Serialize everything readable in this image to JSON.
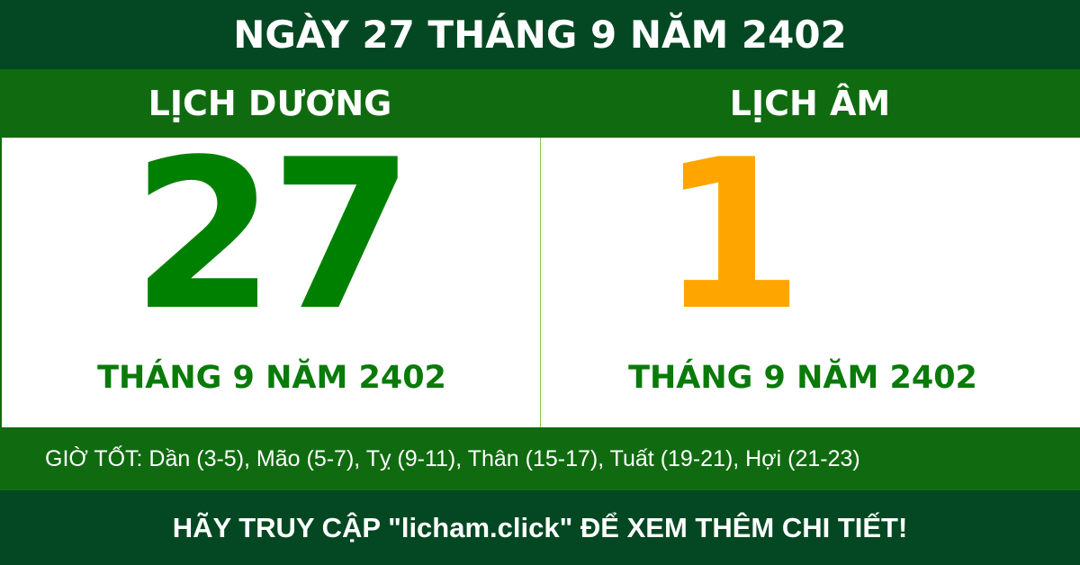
{
  "title": "NGÀY 27 THÁNG 9 NĂM 2402",
  "solar": {
    "heading": "LỊCH DƯƠNG",
    "day": "27",
    "month_year": "THÁNG 9 NĂM 2402"
  },
  "lunar": {
    "heading": "LỊCH ÂM",
    "day": "1",
    "month_year": "THÁNG 9 NĂM 2402"
  },
  "good_hours": "GIỜ TỐT: Dần (3-5), Mão (5-7), Tỵ (9-11), Thân (15-17), Tuất (19-21), Hợi (21-23)",
  "footer": "HÃY TRUY CẬP \"licham.click\" ĐỂ XEM THÊM CHI TIẾT!",
  "colors": {
    "dark_green": "#034822",
    "green": "#106b10",
    "solar_day": "#008000",
    "lunar_day": "#ffa500"
  }
}
